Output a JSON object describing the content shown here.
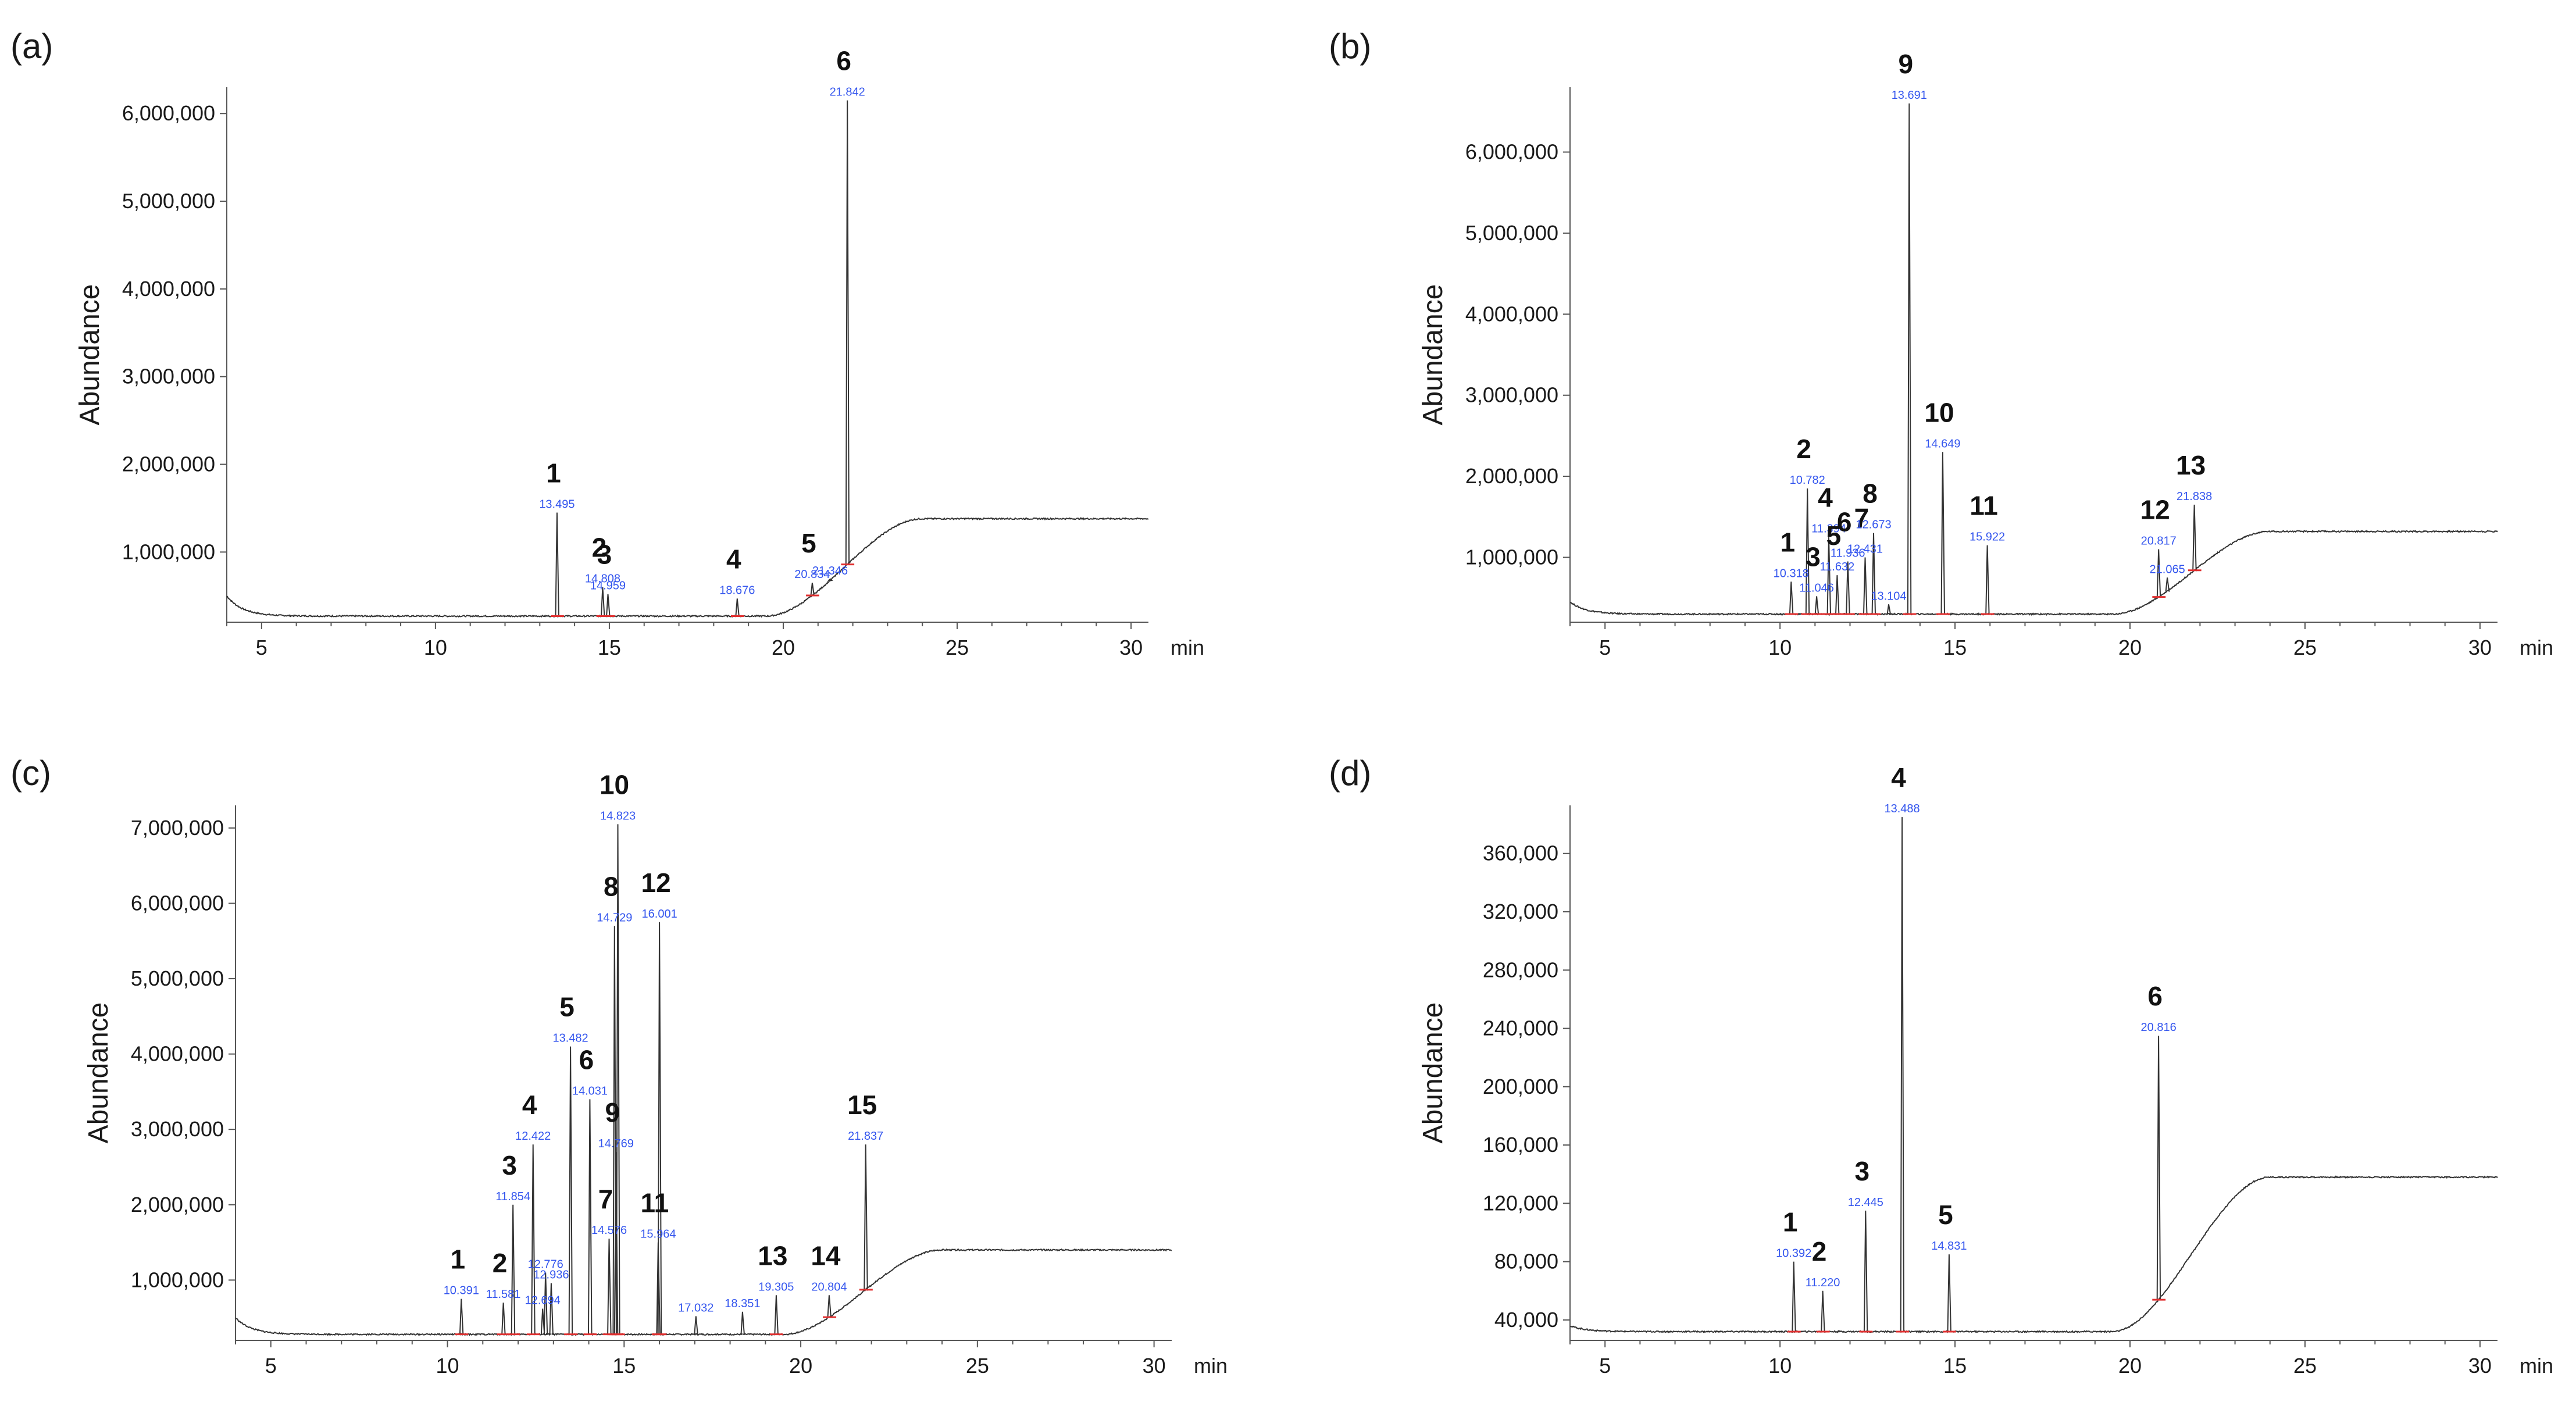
{
  "figure": {
    "panel_count": 4
  },
  "colors": {
    "trace": "#333333",
    "baseline": "#e03030",
    "rt_label": "#3355ee",
    "axis": "#555555",
    "text": "#1a1a1a"
  },
  "chart_data": [
    {
      "type": "line",
      "panel_label": "(a)",
      "xlabel": "min",
      "ylabel": "Abundance",
      "xlim": [
        4,
        30.5
      ],
      "ylim": [
        200000,
        6300000
      ],
      "xticks": [
        5,
        10,
        15,
        20,
        25,
        30
      ],
      "yticks": [
        1000000,
        2000000,
        3000000,
        4000000,
        5000000,
        6000000
      ],
      "ytick_labels": [
        "1,000,000",
        "2,000,000",
        "3,000,000",
        "4,000,000",
        "5,000,000",
        "6,000,000"
      ],
      "baseline": {
        "base": 270000,
        "plateau": 1380000,
        "rise_start": 19.5,
        "rise_end": 24.0,
        "start_bump": 500000
      },
      "peaks": [
        {
          "num": "1",
          "rt": "13.495",
          "x": 13.495,
          "y": 1450000
        },
        {
          "num": "2",
          "rt": "14.808",
          "x": 14.808,
          "y": 600000
        },
        {
          "num": "3",
          "rt": "14.959",
          "x": 14.959,
          "y": 520000
        },
        {
          "num": "4",
          "rt": "18.676",
          "x": 18.676,
          "y": 470000
        },
        {
          "num": "5",
          "rt": "20.834",
          "x": 20.834,
          "y": 650000
        },
        {
          "num": "6",
          "rt": "21.842",
          "x": 21.842,
          "y": 6150000
        }
      ],
      "extra_rt_labels": [
        {
          "rt": "21.346",
          "x": 21.346,
          "y": 690000
        }
      ]
    },
    {
      "type": "line",
      "panel_label": "(b)",
      "xlabel": "min",
      "ylabel": "Abundance",
      "xlim": [
        4,
        30.5
      ],
      "ylim": [
        200000,
        6800000
      ],
      "xticks": [
        5,
        10,
        15,
        20,
        25,
        30
      ],
      "yticks": [
        1000000,
        2000000,
        3000000,
        4000000,
        5000000,
        6000000
      ],
      "ytick_labels": [
        "1,000,000",
        "2,000,000",
        "3,000,000",
        "4,000,000",
        "5,000,000",
        "6,000,000"
      ],
      "baseline": {
        "base": 300000,
        "plateau": 1320000,
        "rise_start": 19.5,
        "rise_end": 24.0,
        "start_bump": 450000
      },
      "peaks": [
        {
          "num": "1",
          "rt": "10.318",
          "x": 10.318,
          "y": 700000
        },
        {
          "num": "2",
          "rt": "10.782",
          "x": 10.782,
          "y": 1850000
        },
        {
          "num": "3",
          "rt": "11.046",
          "x": 11.046,
          "y": 520000
        },
        {
          "num": "4",
          "rt": "11.394",
          "x": 11.394,
          "y": 1250000
        },
        {
          "num": "5",
          "rt": "11.632",
          "x": 11.632,
          "y": 780000
        },
        {
          "num": "6",
          "rt": "11.936",
          "x": 11.936,
          "y": 950000
        },
        {
          "num": "7",
          "rt": "12.431",
          "x": 12.431,
          "y": 1000000
        },
        {
          "num": "8",
          "rt": "12.673",
          "x": 12.673,
          "y": 1300000
        },
        {
          "num": "9",
          "rt": "13.691",
          "x": 13.691,
          "y": 6600000
        },
        {
          "num": "10",
          "rt": "14.649",
          "x": 14.649,
          "y": 2300000
        },
        {
          "num": "11",
          "rt": "15.922",
          "x": 15.922,
          "y": 1150000
        },
        {
          "num": "12",
          "rt": "20.817",
          "x": 20.817,
          "y": 1100000
        },
        {
          "num": "13",
          "rt": "21.838",
          "x": 21.838,
          "y": 1650000
        }
      ],
      "extra_rt_labels": [
        {
          "rt": "13.104",
          "x": 13.104,
          "y": 420000
        },
        {
          "rt": "21.065",
          "x": 21.065,
          "y": 750000
        }
      ]
    },
    {
      "type": "line",
      "panel_label": "(c)",
      "xlabel": "min",
      "ylabel": "Abundance",
      "xlim": [
        4,
        30.5
      ],
      "ylim": [
        200000,
        7300000
      ],
      "xticks": [
        5,
        10,
        15,
        20,
        25,
        30
      ],
      "yticks": [
        1000000,
        2000000,
        3000000,
        4000000,
        5000000,
        6000000,
        7000000
      ],
      "ytick_labels": [
        "1,000,000",
        "2,000,000",
        "3,000,000",
        "4,000,000",
        "5,000,000",
        "6,000,000",
        "7,000,000"
      ],
      "baseline": {
        "base": 280000,
        "plateau": 1400000,
        "rise_start": 19.5,
        "rise_end": 24.0,
        "start_bump": 500000
      },
      "peaks": [
        {
          "num": "1",
          "rt": "10.391",
          "x": 10.391,
          "y": 750000
        },
        {
          "num": "2",
          "rt": "11.581",
          "x": 11.581,
          "y": 700000
        },
        {
          "num": "3",
          "rt": "11.854",
          "x": 11.854,
          "y": 2000000
        },
        {
          "num": "4",
          "rt": "12.422",
          "x": 12.422,
          "y": 2800000
        },
        {
          "num": "5",
          "rt": "13.482",
          "x": 13.482,
          "y": 4100000
        },
        {
          "num": "6",
          "rt": "14.031",
          "x": 14.031,
          "y": 3400000
        },
        {
          "num": "7",
          "rt": "14.576",
          "x": 14.576,
          "y": 1550000
        },
        {
          "num": "8",
          "rt": "14.729",
          "x": 14.729,
          "y": 5700000
        },
        {
          "num": "9",
          "rt": "14.769",
          "x": 14.769,
          "y": 2700000
        },
        {
          "num": "10",
          "rt": "14.823",
          "x": 14.823,
          "y": 7050000
        },
        {
          "num": "11",
          "rt": "15.964",
          "x": 15.964,
          "y": 1500000
        },
        {
          "num": "12",
          "rt": "16.001",
          "x": 16.001,
          "y": 5750000
        },
        {
          "num": "13",
          "rt": "19.305",
          "x": 19.305,
          "y": 800000
        },
        {
          "num": "14",
          "rt": "20.804",
          "x": 20.804,
          "y": 800000
        },
        {
          "num": "15",
          "rt": "21.837",
          "x": 21.837,
          "y": 2800000
        }
      ],
      "extra_rt_labels": [
        {
          "rt": "12.776",
          "x": 12.776,
          "y": 1100000
        },
        {
          "rt": "12.936",
          "x": 12.936,
          "y": 960000
        },
        {
          "rt": "12.694",
          "x": 12.694,
          "y": 620000
        },
        {
          "rt": "17.032",
          "x": 17.032,
          "y": 520000
        },
        {
          "rt": "18.351",
          "x": 18.351,
          "y": 580000
        }
      ]
    },
    {
      "type": "line",
      "panel_label": "(d)",
      "xlabel": "min",
      "ylabel": "Abundance",
      "xlim": [
        4,
        30.5
      ],
      "ylim": [
        26000,
        393000
      ],
      "xticks": [
        5,
        10,
        15,
        20,
        25,
        30
      ],
      "yticks": [
        40000,
        80000,
        120000,
        160000,
        200000,
        240000,
        280000,
        320000,
        360000
      ],
      "ytick_labels": [
        "40,000",
        "80,000",
        "120,000",
        "160,000",
        "200,000",
        "240,000",
        "280,000",
        "320,000",
        "360,000"
      ],
      "baseline": {
        "base": 32000,
        "plateau": 138000,
        "rise_start": 19.5,
        "rise_end": 24.0,
        "start_bump": 36000
      },
      "peaks": [
        {
          "num": "1",
          "rt": "10.392",
          "x": 10.392,
          "y": 80000
        },
        {
          "num": "2",
          "rt": "11.220",
          "x": 11.22,
          "y": 60000
        },
        {
          "num": "3",
          "rt": "12.445",
          "x": 12.445,
          "y": 115000
        },
        {
          "num": "4",
          "rt": "13.488",
          "x": 13.488,
          "y": 385000
        },
        {
          "num": "5",
          "rt": "14.831",
          "x": 14.831,
          "y": 85000
        },
        {
          "num": "6",
          "rt": "20.816",
          "x": 20.816,
          "y": 235000
        }
      ],
      "extra_rt_labels": []
    }
  ]
}
